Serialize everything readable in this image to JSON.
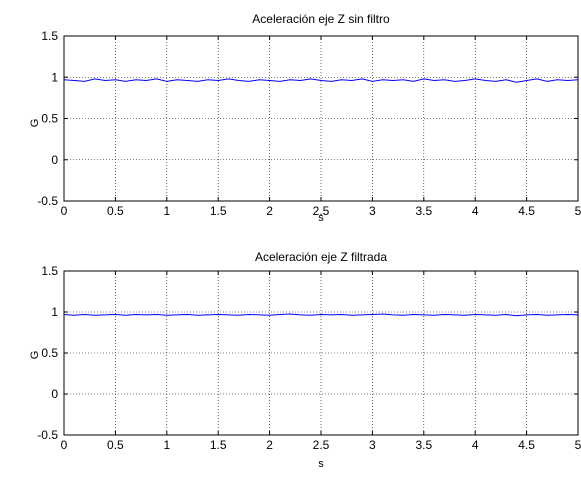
{
  "figure": {
    "background": "#ffffff",
    "line_color": "#0000ff",
    "grid_color": "#000000"
  },
  "chart_data": [
    {
      "type": "line",
      "title": "Aceleración eje Z sin filtro",
      "xlabel": "s",
      "ylabel": "G",
      "xlim": [
        0,
        5
      ],
      "ylim": [
        -0.5,
        1.5
      ],
      "xticks": [
        "0",
        "0.5",
        "1",
        "1.5",
        "2",
        "2.5",
        "3",
        "3.5",
        "4",
        "4.5",
        "5"
      ],
      "yticks": [
        "-0.5",
        "0",
        "0.5",
        "1",
        "1.5"
      ],
      "grid": true,
      "series": [
        {
          "x": [
            0,
            0.1,
            0.2,
            0.3,
            0.4,
            0.5,
            0.6,
            0.7,
            0.8,
            0.9,
            1.0,
            1.1,
            1.2,
            1.3,
            1.4,
            1.5,
            1.6,
            1.7,
            1.8,
            1.9,
            2.0,
            2.1,
            2.2,
            2.3,
            2.4,
            2.5,
            2.6,
            2.7,
            2.8,
            2.9,
            3.0,
            3.1,
            3.2,
            3.3,
            3.4,
            3.5,
            3.6,
            3.7,
            3.8,
            3.9,
            4.0,
            4.1,
            4.2,
            4.3,
            4.4,
            4.5,
            4.6,
            4.7,
            4.8,
            4.9,
            5.0
          ],
          "values": [
            0.97,
            0.96,
            0.95,
            0.98,
            0.96,
            0.97,
            0.95,
            0.97,
            0.96,
            0.98,
            0.95,
            0.97,
            0.96,
            0.95,
            0.97,
            0.96,
            0.98,
            0.96,
            0.95,
            0.97,
            0.96,
            0.95,
            0.97,
            0.96,
            0.98,
            0.96,
            0.95,
            0.97,
            0.96,
            0.98,
            0.95,
            0.97,
            0.96,
            0.97,
            0.95,
            0.98,
            0.96,
            0.97,
            0.95,
            0.96,
            0.98,
            0.96,
            0.95,
            0.97,
            0.94,
            0.96,
            0.98,
            0.95,
            0.97,
            0.96,
            0.97
          ]
        }
      ]
    },
    {
      "type": "line",
      "title": "Aceleración eje Z filtrada",
      "xlabel": "s",
      "ylabel": "G",
      "xlim": [
        0,
        5
      ],
      "ylim": [
        -0.5,
        1.5
      ],
      "xticks": [
        "0",
        "0.5",
        "1",
        "1.5",
        "2",
        "2.5",
        "3",
        "3.5",
        "4",
        "4.5",
        "5"
      ],
      "yticks": [
        "-0.5",
        "0",
        "0.5",
        "1",
        "1.5"
      ],
      "grid": true,
      "series": [
        {
          "x": [
            0,
            0.1,
            0.2,
            0.3,
            0.4,
            0.5,
            0.6,
            0.7,
            0.8,
            0.9,
            1.0,
            1.1,
            1.2,
            1.3,
            1.4,
            1.5,
            1.6,
            1.7,
            1.8,
            1.9,
            2.0,
            2.1,
            2.2,
            2.3,
            2.4,
            2.5,
            2.6,
            2.7,
            2.8,
            2.9,
            3.0,
            3.1,
            3.2,
            3.3,
            3.4,
            3.5,
            3.6,
            3.7,
            3.8,
            3.9,
            4.0,
            4.1,
            4.2,
            4.3,
            4.4,
            4.5,
            4.6,
            4.7,
            4.8,
            4.9,
            5.0
          ],
          "values": [
            0.97,
            0.96,
            0.97,
            0.96,
            0.965,
            0.97,
            0.96,
            0.97,
            0.965,
            0.97,
            0.96,
            0.965,
            0.97,
            0.96,
            0.965,
            0.97,
            0.965,
            0.96,
            0.97,
            0.965,
            0.96,
            0.97,
            0.975,
            0.965,
            0.96,
            0.97,
            0.965,
            0.97,
            0.96,
            0.965,
            0.97,
            0.975,
            0.965,
            0.96,
            0.97,
            0.965,
            0.96,
            0.97,
            0.965,
            0.96,
            0.97,
            0.965,
            0.96,
            0.97,
            0.955,
            0.965,
            0.97,
            0.96,
            0.965,
            0.97,
            0.965
          ]
        }
      ]
    }
  ]
}
